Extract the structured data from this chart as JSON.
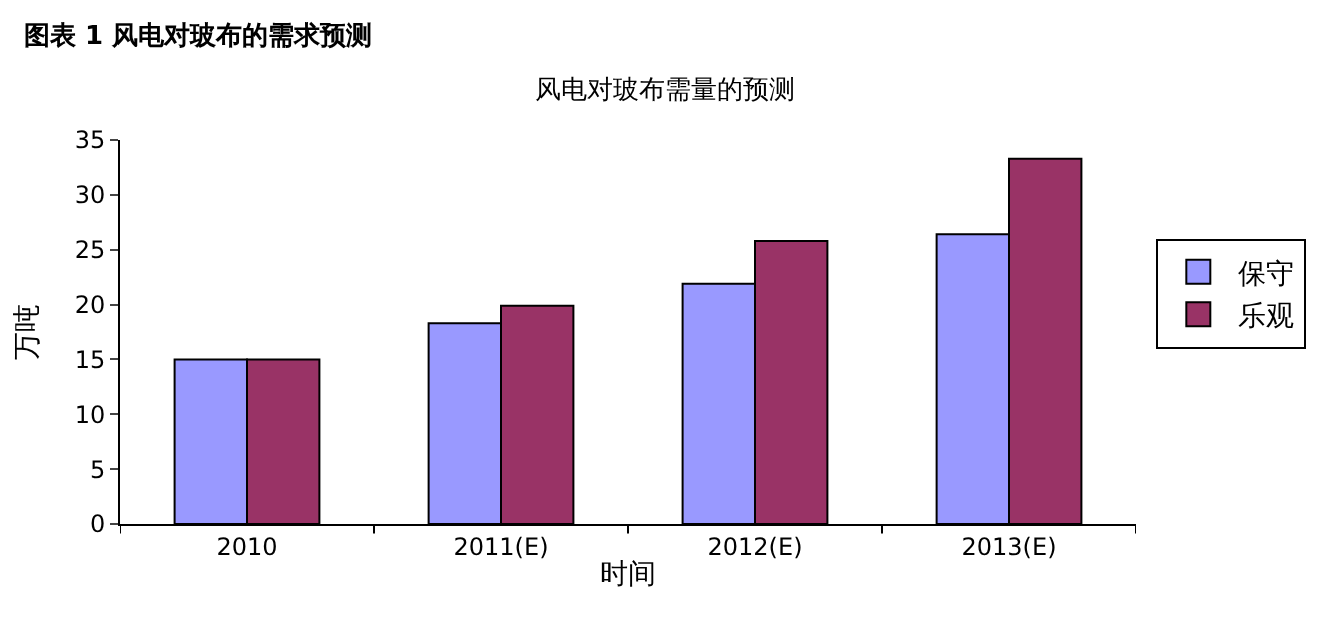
{
  "chart_data": {
    "type": "bar",
    "title": "风电对玻布需量的预测",
    "subtitle": "图表 1 风电对玻布的需求预测",
    "xlabel": "时间",
    "ylabel": "万吨",
    "categories": [
      "2010",
      "2011(E)",
      "2012(E)",
      "2013(E)"
    ],
    "series": [
      {
        "name": "保守",
        "color": "#9999ff",
        "values": [
          15,
          18.3,
          21.9,
          26.4
        ]
      },
      {
        "name": "乐观",
        "color": "#993366",
        "values": [
          15,
          19.9,
          25.8,
          33.3
        ]
      }
    ],
    "ylim": [
      0,
      35
    ],
    "yticks": [
      0,
      5,
      10,
      15,
      20,
      25,
      30,
      35
    ],
    "legend": "right"
  }
}
